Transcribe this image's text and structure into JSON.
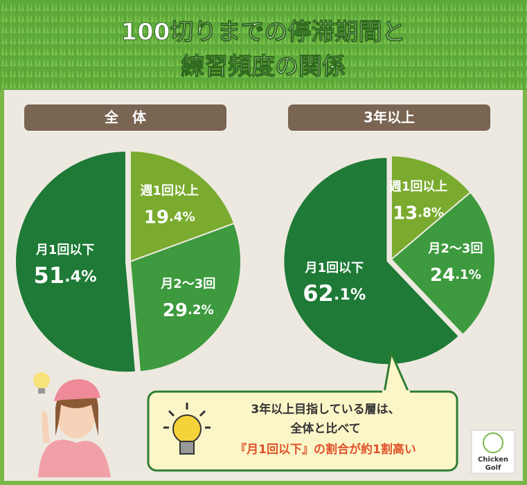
{
  "title_lines": [
    "100切りまでの停滞期間と",
    "練習頻度の関係"
  ],
  "chart_data": [
    {
      "type": "pie",
      "heading": "全　体",
      "categories": [
        "週1回以上",
        "月2〜3回",
        "月1回以下"
      ],
      "values": [
        19.4,
        29.2,
        51.4
      ],
      "value_labels": [
        "19.4%",
        "29.2%",
        "51.4%"
      ],
      "colors": [
        "#7aab2e",
        "#3d9a3e",
        "#1e7a36"
      ]
    },
    {
      "type": "pie",
      "heading": "3年以上",
      "categories": [
        "週1回以上",
        "月2〜3回",
        "月1回以下"
      ],
      "values": [
        13.8,
        24.1,
        62.1
      ],
      "value_labels": [
        "13.8%",
        "24.1%",
        "62.1%"
      ],
      "colors": [
        "#7aab2e",
        "#3d9a3e",
        "#1e7a36"
      ]
    }
  ],
  "callout": {
    "lines": [
      "3年以上目指している層は、",
      "全体と比べて"
    ],
    "highlight": "『月1回以下』の割合が約1割高い"
  },
  "logo": {
    "line1": "Chicken",
    "line2": "Golf"
  }
}
